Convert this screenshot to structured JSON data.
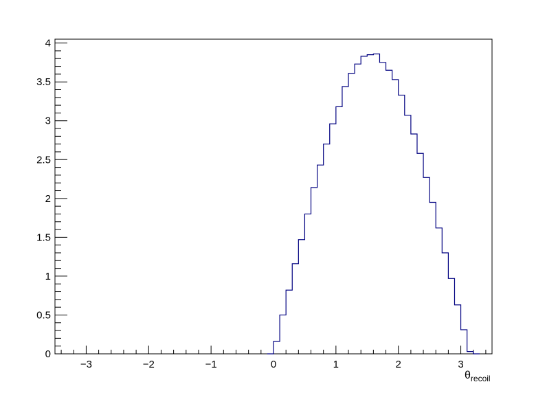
{
  "chart_data": {
    "type": "bar",
    "style": "step-histogram",
    "xlabel": {
      "symbol": "θ",
      "subscript": "recoil"
    },
    "ylabel": "",
    "xlim": [
      -3.5,
      3.5
    ],
    "ylim": [
      0,
      4.05
    ],
    "grid": false,
    "line_color": "#000080",
    "bin_width": 0.1,
    "bins_x_start": [
      -0.1,
      0.0,
      0.1,
      0.2,
      0.3,
      0.4,
      0.5,
      0.6,
      0.7,
      0.8,
      0.9,
      1.0,
      1.1,
      1.2,
      1.3,
      1.4,
      1.5,
      1.6,
      1.7,
      1.8,
      1.9,
      2.0,
      2.1,
      2.2,
      2.3,
      2.4,
      2.5,
      2.6,
      2.7,
      2.8,
      2.9,
      3.0,
      3.1,
      3.2
    ],
    "values": [
      0,
      0.16,
      0.5,
      0.82,
      1.16,
      1.47,
      1.8,
      2.14,
      2.43,
      2.7,
      2.96,
      3.18,
      3.44,
      3.61,
      3.73,
      3.83,
      3.85,
      3.86,
      3.75,
      3.65,
      3.53,
      3.33,
      3.07,
      2.83,
      2.58,
      2.27,
      1.95,
      1.62,
      1.3,
      0.97,
      0.63,
      0.31,
      0.03,
      0
    ],
    "x_ticks": [
      {
        "value": -3,
        "label": "−3"
      },
      {
        "value": -2,
        "label": "−2"
      },
      {
        "value": -1,
        "label": "−1"
      },
      {
        "value": 0,
        "label": "0"
      },
      {
        "value": 1,
        "label": "1"
      },
      {
        "value": 2,
        "label": "2"
      },
      {
        "value": 3,
        "label": "3"
      }
    ],
    "y_ticks": [
      {
        "value": 0,
        "label": "0"
      },
      {
        "value": 0.5,
        "label": "0.5"
      },
      {
        "value": 1,
        "label": "1"
      },
      {
        "value": 1.5,
        "label": "1.5"
      },
      {
        "value": 2,
        "label": "2"
      },
      {
        "value": 2.5,
        "label": "2.5"
      },
      {
        "value": 3,
        "label": "3"
      },
      {
        "value": 3.5,
        "label": "3.5"
      },
      {
        "value": 4,
        "label": "4"
      }
    ]
  }
}
